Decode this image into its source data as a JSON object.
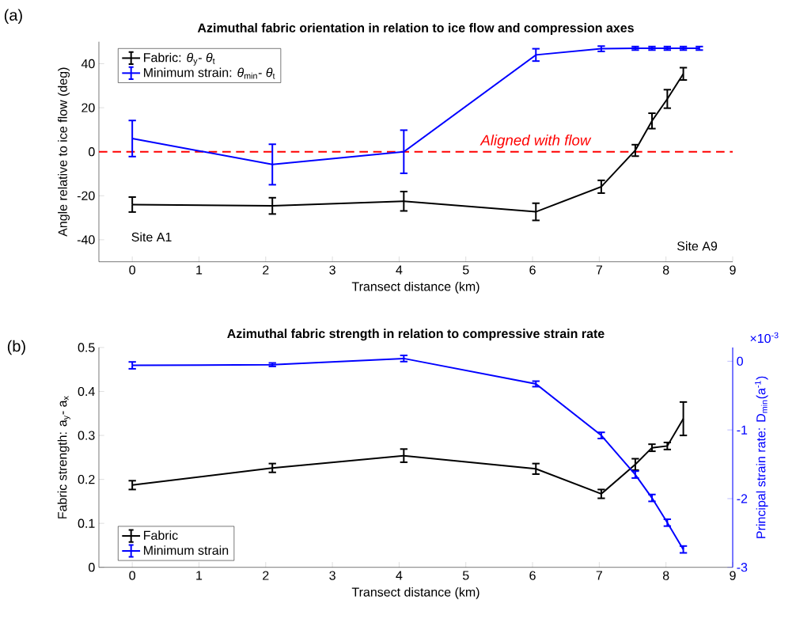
{
  "chart_data": [
    {
      "type": "line",
      "title": "Azimuthal fabric orientation in relation to ice flow and compression axes",
      "xlabel": "Transect distance (km)",
      "ylabel": "Angle relative to ice flow (deg)",
      "x": [
        0,
        2.1,
        4.07,
        6.05,
        7.03,
        7.54,
        7.79,
        8.02,
        8.26
      ],
      "series": [
        {
          "name": "Fabric: *θ*$_{y}$- *θ*$_{t}$",
          "color": "#000000",
          "values": [
            -24.0,
            -24.6,
            -22.5,
            -27.3,
            -15.9,
            0.6,
            14.0,
            24.0,
            35.4
          ],
          "errors": [
            3.4,
            3.7,
            4.4,
            3.9,
            2.9,
            2.6,
            3.5,
            4.2,
            2.8
          ]
        },
        {
          "name": "Minimum strain: *θ*$_{min}$- *θ*$_{t}$",
          "color": "#0000ff",
          "x": [
            0,
            2.1,
            4.07,
            6.05,
            7.03,
            7.54,
            7.79,
            8.02,
            8.26,
            8.5
          ],
          "values": [
            6.0,
            -5.8,
            0,
            44.0,
            46.8,
            47.0,
            47.0,
            47.0,
            47.0,
            47.0
          ],
          "errors": [
            8.2,
            9.2,
            9.8,
            2.8,
            1.2,
            0.8,
            0.8,
            0.8,
            0.8,
            0.8
          ]
        }
      ],
      "xlim": [
        -0.5,
        9
      ],
      "ylim": [
        -50,
        50
      ],
      "xticks": [
        0,
        1,
        2,
        3,
        4,
        5,
        6,
        7,
        8,
        9
      ],
      "yticks": [
        -40,
        -20,
        0,
        20,
        40
      ],
      "legend": "top left",
      "ref_lines": [
        {
          "axis": "y",
          "value": 0,
          "label": "Aligned with flow",
          "color": "#ff0000",
          "line_style": "dashed"
        }
      ],
      "annotations": [
        "(a)",
        "Site A1",
        "Site A9"
      ]
    },
    {
      "type": "line",
      "title": "Azimuthal fabric strength in relation to compressive strain rate",
      "xlabel": "Transect distance (km)",
      "ylabel": "Fabric strength:  a$_{y}$- a$_{x}$",
      "y2label": "Principal strain rate: D$_{min}$(a$^{-1}$)",
      "x": [
        0,
        2.1,
        4.07,
        6.05,
        7.03,
        7.54,
        7.79,
        8.02,
        8.26
      ],
      "series": [
        {
          "name": "Fabric",
          "color": "#000000",
          "values": [
            0.187,
            0.226,
            0.254,
            0.224,
            0.167,
            0.234,
            0.272,
            0.276,
            0.338
          ],
          "errors": [
            0.01,
            0.01,
            0.015,
            0.012,
            0.01,
            0.013,
            0.008,
            0.008,
            0.038
          ]
        },
        {
          "name": "Minimum strain",
          "color": "#0000ff",
          "axis": "y2",
          "values": [
            -0.06,
            -0.05,
            0.04,
            -0.33,
            -1.08,
            -1.65,
            -1.99,
            -2.35,
            -2.74
          ],
          "errors": [
            0.05,
            0.025,
            0.045,
            0.04,
            0.045,
            0.05,
            0.05,
            0.05,
            0.05
          ]
        }
      ],
      "xlim": [
        -0.5,
        9
      ],
      "ylim": [
        0,
        0.5
      ],
      "y2lim": [
        -3,
        0.2
      ],
      "xticks": [
        0,
        1,
        2,
        3,
        4,
        5,
        6,
        7,
        8,
        9
      ],
      "yticks": [
        0,
        0.1,
        0.2,
        0.3,
        0.4,
        0.5
      ],
      "y2ticks": [
        -3,
        -2,
        -1,
        0
      ],
      "legend": "bottom left",
      "annotations": [
        "(b)",
        "×10$^{-3}$"
      ]
    }
  ]
}
